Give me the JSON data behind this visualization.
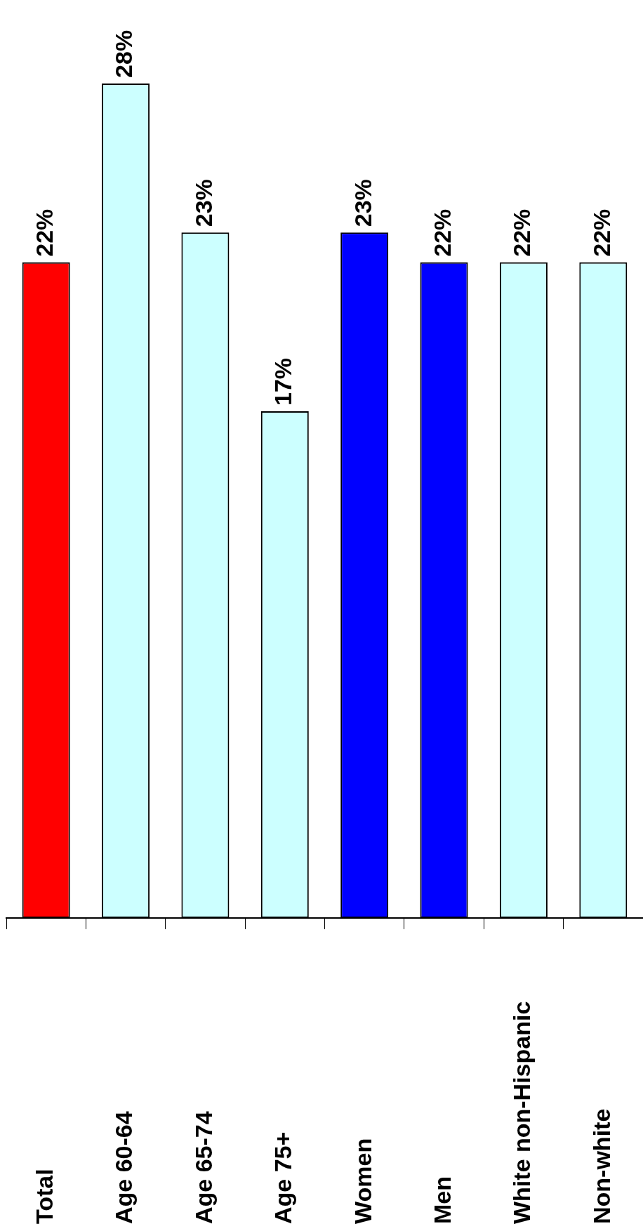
{
  "chart_data": {
    "type": "bar",
    "categories": [
      "Total",
      "Age 60-64",
      "Age 65-74",
      "Age 75+",
      "Women",
      "Men",
      "White non-Hispanic",
      "Non-white"
    ],
    "values": [
      22,
      28,
      23,
      17,
      23,
      22,
      22,
      22
    ],
    "colors": [
      "#ff0000",
      "#ccffff",
      "#ccffff",
      "#ccffff",
      "#0000ff",
      "#0000ff",
      "#ccffff",
      "#ccffff"
    ],
    "value_labels": [
      "22%",
      "28%",
      "23%",
      "17%",
      "23%",
      "22%",
      "22%",
      "22%"
    ],
    "grid": false,
    "legend": false
  }
}
